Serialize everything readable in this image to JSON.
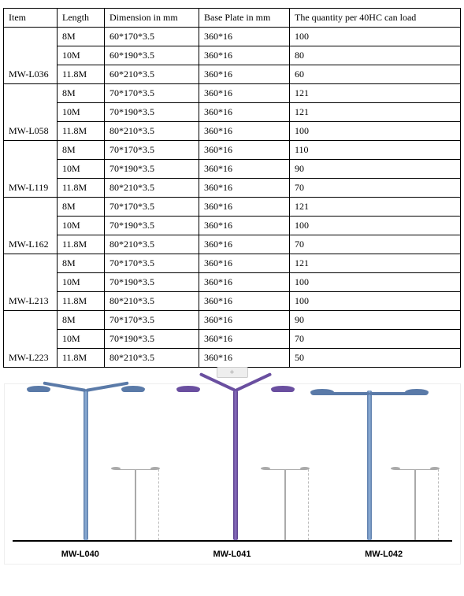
{
  "table": {
    "headers": {
      "item": "Item",
      "length": "Length",
      "dimension": "Dimension in mm",
      "baseplate": "Base Plate in mm",
      "quantity": "The quantity per 40HC can load"
    },
    "groups": [
      {
        "item": "MW-L036",
        "rows": [
          {
            "length": "8M",
            "dim": "60*170*3.5",
            "base": "360*16",
            "qty": "100"
          },
          {
            "length": "10M",
            "dim": "60*190*3.5",
            "base": "360*16",
            "qty": "80"
          },
          {
            "length": "11.8M",
            "dim": "60*210*3.5",
            "base": "360*16",
            "qty": "60"
          }
        ]
      },
      {
        "item": "MW-L058",
        "rows": [
          {
            "length": "8M",
            "dim": "70*170*3.5",
            "base": "360*16",
            "qty": "121"
          },
          {
            "length": "10M",
            "dim": "70*190*3.5",
            "base": "360*16",
            "qty": "121"
          },
          {
            "length": "11.8M",
            "dim": "80*210*3.5",
            "base": "360*16",
            "qty": "100"
          }
        ]
      },
      {
        "item": "MW-L119",
        "rows": [
          {
            "length": "8M",
            "dim": "70*170*3.5",
            "base": "360*16",
            "qty": "110"
          },
          {
            "length": "10M",
            "dim": "70*190*3.5",
            "base": "360*16",
            "qty": "90"
          },
          {
            "length": "11.8M",
            "dim": "80*210*3.5",
            "base": "360*16",
            "qty": "70"
          }
        ]
      },
      {
        "item": "MW-L162",
        "rows": [
          {
            "length": "8M",
            "dim": "70*170*3.5",
            "base": "360*16",
            "qty": "121"
          },
          {
            "length": "10M",
            "dim": "70*190*3.5",
            "base": "360*16",
            "qty": "100"
          },
          {
            "length": "11.8M",
            "dim": "80*210*3.5",
            "base": "360*16",
            "qty": "70"
          }
        ]
      },
      {
        "item": "MW-L213",
        "rows": [
          {
            "length": "8M",
            "dim": "70*170*3.5",
            "base": "360*16",
            "qty": "121"
          },
          {
            "length": "10M",
            "dim": "70*190*3.5",
            "base": "360*16",
            "qty": "100"
          },
          {
            "length": "11.8M",
            "dim": "80*210*3.5",
            "base": "360*16",
            "qty": "100"
          }
        ]
      },
      {
        "item": "MW-L223",
        "rows": [
          {
            "length": "8M",
            "dim": "70*170*3.5",
            "base": "360*16",
            "qty": "90"
          },
          {
            "length": "10M",
            "dim": "70*190*3.5",
            "base": "360*16",
            "qty": "70"
          },
          {
            "length": "11.8M",
            "dim": "80*210*3.5",
            "base": "360*16",
            "qty": "50"
          }
        ]
      }
    ]
  },
  "plus_label": "+",
  "illustration": {
    "labels": [
      "MW-L040",
      "MW-L041",
      "MW-L042"
    ],
    "colors": {
      "blue": "#5a7aa8",
      "purple": "#6a4fa0",
      "ground": "#000000",
      "mini": "#aaaaaa"
    }
  }
}
